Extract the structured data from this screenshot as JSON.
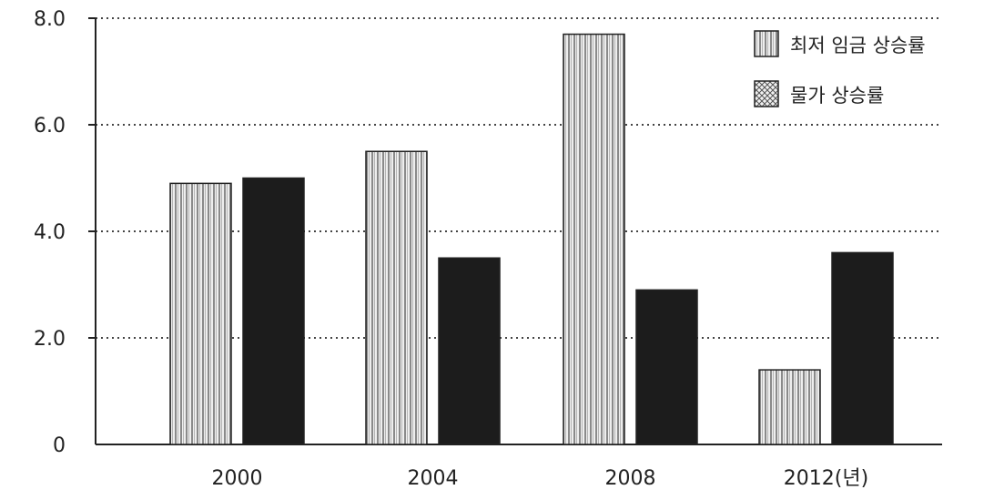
{
  "chart_data": {
    "type": "bar",
    "categories": [
      "2000",
      "2004",
      "2008",
      "2012(년)"
    ],
    "series": [
      {
        "name": "최저 임금 상승률",
        "values": [
          4.9,
          5.5,
          7.7,
          1.4
        ],
        "pattern": "vertical-stripes"
      },
      {
        "name": "물가 상승률",
        "values": [
          5.0,
          3.5,
          2.9,
          3.6
        ],
        "pattern": "solid-dark"
      }
    ],
    "y_ticks": [
      "0",
      "2.0",
      "4.0",
      "6.0",
      "8.0"
    ],
    "ylim": [
      0,
      8
    ],
    "grid": true,
    "legend": "top-right",
    "colors": {
      "stripe_light": "#eeeeee",
      "stripe_dark": "#8a8a8a",
      "solid_bar": "#1c1c1c",
      "axis": "#222222",
      "grid": "#444444"
    }
  }
}
